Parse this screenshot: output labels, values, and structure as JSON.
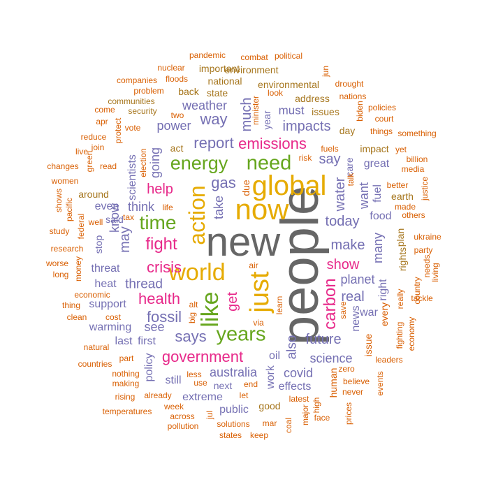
{
  "colors": {
    "gray": "#666666",
    "orange": "#d95f02",
    "purple": "#7570b3",
    "pink": "#e7298a",
    "green": "#66a61e",
    "gold": "#e6ab02",
    "brown": "#a6761d"
  },
  "words": [
    {
      "text": "people",
      "color": "gray"
    },
    {
      "text": "new",
      "color": "gray"
    },
    {
      "text": "now",
      "color": "gold"
    },
    {
      "text": "global",
      "color": "gold"
    },
    {
      "text": "world",
      "color": "gold"
    },
    {
      "text": "just",
      "color": "gold"
    },
    {
      "text": "action",
      "color": "gold"
    },
    {
      "text": "like",
      "color": "green"
    },
    {
      "text": "energy",
      "color": "green"
    },
    {
      "text": "need",
      "color": "green"
    },
    {
      "text": "time",
      "color": "green"
    },
    {
      "text": "years",
      "color": "green"
    },
    {
      "text": "emissions",
      "color": "pink"
    },
    {
      "text": "crisis",
      "color": "pink"
    },
    {
      "text": "fight",
      "color": "pink"
    },
    {
      "text": "health",
      "color": "pink"
    },
    {
      "text": "government",
      "color": "pink"
    },
    {
      "text": "help",
      "color": "pink"
    },
    {
      "text": "show",
      "color": "pink"
    },
    {
      "text": "carbon",
      "color": "pink"
    },
    {
      "text": "get",
      "color": "pink"
    },
    {
      "text": "gas",
      "color": "purple"
    },
    {
      "text": "report",
      "color": "purple"
    },
    {
      "text": "today",
      "color": "purple"
    },
    {
      "text": "make",
      "color": "purple"
    },
    {
      "text": "real",
      "color": "purple"
    },
    {
      "text": "future",
      "color": "purple"
    },
    {
      "text": "fossil",
      "color": "purple"
    },
    {
      "text": "says",
      "color": "purple"
    },
    {
      "text": "thread",
      "color": "purple"
    },
    {
      "text": "water",
      "color": "purple"
    },
    {
      "text": "say",
      "color": "purple"
    },
    {
      "text": "take",
      "color": "purple"
    },
    {
      "text": "impacts",
      "color": "purple"
    },
    {
      "text": "weather",
      "color": "purple"
    },
    {
      "text": "way",
      "color": "purple"
    },
    {
      "text": "much",
      "color": "purple"
    },
    {
      "text": "power",
      "color": "purple"
    },
    {
      "text": "planet",
      "color": "purple"
    },
    {
      "text": "science",
      "color": "purple"
    },
    {
      "text": "australia",
      "color": "purple"
    },
    {
      "text": "covid",
      "color": "purple"
    },
    {
      "text": "also",
      "color": "purple"
    },
    {
      "text": "think",
      "color": "purple"
    },
    {
      "text": "may",
      "color": "purple"
    },
    {
      "text": "going",
      "color": "purple"
    },
    {
      "text": "know",
      "color": "purple"
    },
    {
      "text": "scientists",
      "color": "purple"
    },
    {
      "text": "warming",
      "color": "purple"
    },
    {
      "text": "see",
      "color": "purple"
    },
    {
      "text": "first",
      "color": "purple"
    },
    {
      "text": "support",
      "color": "purple"
    },
    {
      "text": "heat",
      "color": "purple"
    },
    {
      "text": "threat",
      "color": "purple"
    },
    {
      "text": "great",
      "color": "purple"
    },
    {
      "text": "many",
      "color": "purple"
    },
    {
      "text": "want",
      "color": "purple"
    },
    {
      "text": "news",
      "color": "purple"
    },
    {
      "text": "must",
      "color": "purple"
    },
    {
      "text": "extreme",
      "color": "purple"
    },
    {
      "text": "effects",
      "color": "purple"
    },
    {
      "text": "next",
      "color": "purple"
    },
    {
      "text": "public",
      "color": "purple"
    },
    {
      "text": "still",
      "color": "purple"
    },
    {
      "text": "policy",
      "color": "purple"
    },
    {
      "text": "last",
      "color": "purple"
    },
    {
      "text": "work",
      "color": "purple"
    },
    {
      "text": "oil",
      "color": "purple"
    },
    {
      "text": "even",
      "color": "purple"
    },
    {
      "text": "said",
      "color": "purple"
    },
    {
      "text": "stop",
      "color": "purple"
    },
    {
      "text": "year",
      "color": "purple"
    },
    {
      "text": "right",
      "color": "purple"
    },
    {
      "text": "war",
      "color": "purple"
    },
    {
      "text": "care",
      "color": "purple"
    },
    {
      "text": "fuel",
      "color": "purple"
    },
    {
      "text": "food",
      "color": "purple"
    },
    {
      "text": "human",
      "color": "orange"
    },
    {
      "text": "due",
      "color": "orange"
    },
    {
      "text": "issue",
      "color": "orange"
    },
    {
      "text": "every",
      "color": "orange"
    },
    {
      "text": "environment",
      "color": "brown"
    },
    {
      "text": "environmental",
      "color": "brown"
    },
    {
      "text": "national",
      "color": "brown"
    },
    {
      "text": "state",
      "color": "brown"
    },
    {
      "text": "back",
      "color": "brown"
    },
    {
      "text": "important",
      "color": "brown"
    },
    {
      "text": "address",
      "color": "brown"
    },
    {
      "text": "issues",
      "color": "brown"
    },
    {
      "text": "day",
      "color": "brown"
    },
    {
      "text": "impact",
      "color": "brown"
    },
    {
      "text": "earth",
      "color": "brown"
    },
    {
      "text": "plan",
      "color": "brown"
    },
    {
      "text": "rights",
      "color": "brown"
    },
    {
      "text": "act",
      "color": "brown"
    },
    {
      "text": "around",
      "color": "brown"
    },
    {
      "text": "good",
      "color": "brown"
    },
    {
      "text": "communities",
      "color": "brown"
    },
    {
      "text": "security",
      "color": "brown"
    },
    {
      "text": "companies",
      "color": "orange"
    },
    {
      "text": "floods",
      "color": "orange"
    },
    {
      "text": "nuclear",
      "color": "orange"
    },
    {
      "text": "pandemic",
      "color": "orange"
    },
    {
      "text": "combat",
      "color": "orange"
    },
    {
      "text": "political",
      "color": "orange"
    },
    {
      "text": "jun",
      "color": "orange"
    },
    {
      "text": "drought",
      "color": "orange"
    },
    {
      "text": "look",
      "color": "orange"
    },
    {
      "text": "nations",
      "color": "orange"
    },
    {
      "text": "biden",
      "color": "orange"
    },
    {
      "text": "policies",
      "color": "orange"
    },
    {
      "text": "court",
      "color": "orange"
    },
    {
      "text": "something",
      "color": "orange"
    },
    {
      "text": "things",
      "color": "orange"
    },
    {
      "text": "minister",
      "color": "orange"
    },
    {
      "text": "problem",
      "color": "orange"
    },
    {
      "text": "come",
      "color": "orange"
    },
    {
      "text": "two",
      "color": "orange"
    },
    {
      "text": "apr",
      "color": "orange"
    },
    {
      "text": "vote",
      "color": "orange"
    },
    {
      "text": "protect",
      "color": "orange"
    },
    {
      "text": "reduce",
      "color": "orange"
    },
    {
      "text": "join",
      "color": "orange"
    },
    {
      "text": "live",
      "color": "orange"
    },
    {
      "text": "green",
      "color": "orange"
    },
    {
      "text": "read",
      "color": "orange"
    },
    {
      "text": "election",
      "color": "orange"
    },
    {
      "text": "changes",
      "color": "orange"
    },
    {
      "text": "women",
      "color": "orange"
    },
    {
      "text": "shows",
      "color": "orange"
    },
    {
      "text": "pacific",
      "color": "orange"
    },
    {
      "text": "federal",
      "color": "orange"
    },
    {
      "text": "well",
      "color": "orange"
    },
    {
      "text": "tax",
      "color": "orange"
    },
    {
      "text": "life",
      "color": "orange"
    },
    {
      "text": "study",
      "color": "orange"
    },
    {
      "text": "research",
      "color": "orange"
    },
    {
      "text": "worse",
      "color": "orange"
    },
    {
      "text": "long",
      "color": "orange"
    },
    {
      "text": "money",
      "color": "orange"
    },
    {
      "text": "economic",
      "color": "orange"
    },
    {
      "text": "thing",
      "color": "orange"
    },
    {
      "text": "clean",
      "color": "orange"
    },
    {
      "text": "cost",
      "color": "orange"
    },
    {
      "text": "natural",
      "color": "orange"
    },
    {
      "text": "countries",
      "color": "orange"
    },
    {
      "text": "part",
      "color": "orange"
    },
    {
      "text": "nothing",
      "color": "orange"
    },
    {
      "text": "making",
      "color": "orange"
    },
    {
      "text": "rising",
      "color": "orange"
    },
    {
      "text": "already",
      "color": "orange"
    },
    {
      "text": "temperatures",
      "color": "orange"
    },
    {
      "text": "week",
      "color": "orange"
    },
    {
      "text": "across",
      "color": "orange"
    },
    {
      "text": "pollution",
      "color": "orange"
    },
    {
      "text": "less",
      "color": "orange"
    },
    {
      "text": "use",
      "color": "orange"
    },
    {
      "text": "jul",
      "color": "orange"
    },
    {
      "text": "solutions",
      "color": "orange"
    },
    {
      "text": "mar",
      "color": "orange"
    },
    {
      "text": "states",
      "color": "orange"
    },
    {
      "text": "keep",
      "color": "orange"
    },
    {
      "text": "coal",
      "color": "orange"
    },
    {
      "text": "major",
      "color": "orange"
    },
    {
      "text": "latest",
      "color": "orange"
    },
    {
      "text": "high",
      "color": "orange"
    },
    {
      "text": "face",
      "color": "orange"
    },
    {
      "text": "prices",
      "color": "orange"
    },
    {
      "text": "never",
      "color": "orange"
    },
    {
      "text": "zero",
      "color": "orange"
    },
    {
      "text": "events",
      "color": "orange"
    },
    {
      "text": "believe",
      "color": "orange"
    },
    {
      "text": "leaders",
      "color": "orange"
    },
    {
      "text": "fighting",
      "color": "orange"
    },
    {
      "text": "economy",
      "color": "orange"
    },
    {
      "text": "really",
      "color": "orange"
    },
    {
      "text": "country",
      "color": "orange"
    },
    {
      "text": "tackle",
      "color": "orange"
    },
    {
      "text": "living",
      "color": "orange"
    },
    {
      "text": "needs",
      "color": "orange"
    },
    {
      "text": "justice",
      "color": "orange"
    },
    {
      "text": "party",
      "color": "orange"
    },
    {
      "text": "ukraine",
      "color": "orange"
    },
    {
      "text": "others",
      "color": "orange"
    },
    {
      "text": "made",
      "color": "orange"
    },
    {
      "text": "better",
      "color": "orange"
    },
    {
      "text": "media",
      "color": "orange"
    },
    {
      "text": "billion",
      "color": "orange"
    },
    {
      "text": "yet",
      "color": "orange"
    },
    {
      "text": "risk",
      "color": "orange"
    },
    {
      "text": "fuels",
      "color": "orange"
    },
    {
      "text": "talk",
      "color": "orange"
    },
    {
      "text": "let",
      "color": "orange"
    },
    {
      "text": "via",
      "color": "orange"
    },
    {
      "text": "big",
      "color": "orange"
    },
    {
      "text": "alt",
      "color": "orange"
    },
    {
      "text": "air",
      "color": "orange"
    },
    {
      "text": "learn",
      "color": "orange"
    },
    {
      "text": "save",
      "color": "orange"
    },
    {
      "text": "end",
      "color": "orange"
    }
  ]
}
